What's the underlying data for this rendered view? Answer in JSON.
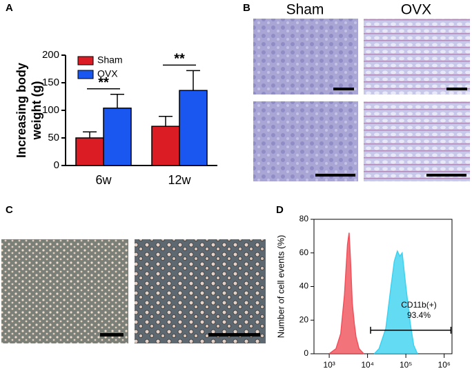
{
  "panels": {
    "a": "A",
    "b": "B",
    "c": "C",
    "d": "D"
  },
  "micrograph_columns": [
    "Sham",
    "OVX"
  ],
  "chart_data": [
    {
      "type": "bar",
      "ylabel": [
        "Increasing body",
        "weight (g)"
      ],
      "categories": [
        "6w",
        "12w"
      ],
      "series": [
        {
          "name": "Sham",
          "color": "#dc1c24",
          "values": [
            50,
            71
          ],
          "errors": [
            11,
            18
          ]
        },
        {
          "name": "OVX",
          "color": "#1a57f0",
          "values": [
            104,
            136
          ],
          "errors": [
            25,
            36
          ]
        }
      ],
      "significance": [
        "**",
        "**"
      ],
      "ylim": [
        0,
        200
      ],
      "yticks": [
        0,
        50,
        100,
        150,
        200
      ],
      "legend": "top-left"
    },
    {
      "type": "area",
      "ylabel": "Number of cell events (%)",
      "log_x": true,
      "xlim": [
        400,
        1600000
      ],
      "xticks": [
        {
          "value": 1000,
          "label": "10³"
        },
        {
          "value": 10000,
          "label": "10⁴"
        },
        {
          "value": 100000,
          "label": "10⁵"
        },
        {
          "value": 1000000,
          "label": "10⁶"
        }
      ],
      "ylim": [
        0,
        80
      ],
      "yticks": [
        0,
        20,
        40,
        60,
        80
      ],
      "series": [
        {
          "color": "#f0505a",
          "x": [
            1000,
            1500,
            2000,
            2500,
            3000,
            3300,
            3600,
            4000,
            4500,
            5000,
            6000,
            8000
          ],
          "values": [
            0,
            3,
            12,
            35,
            65,
            72,
            55,
            30,
            18,
            10,
            3,
            0
          ]
        },
        {
          "color": "#3cd2f0",
          "x": [
            15000,
            20000,
            30000,
            40000,
            50000,
            60000,
            70000,
            80000,
            100000,
            130000,
            160000,
            200000
          ],
          "values": [
            0,
            3,
            15,
            38,
            55,
            61,
            58,
            60,
            40,
            18,
            5,
            0
          ]
        }
      ],
      "gate": {
        "range": [
          12000,
          1500000
        ],
        "y": 14,
        "label": [
          "CD11b(+)",
          "93.4%"
        ]
      }
    }
  ]
}
